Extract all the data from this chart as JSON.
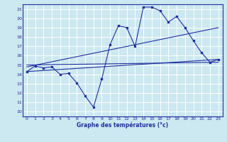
{
  "xlabel": "Graphe des températures (°c)",
  "bg_color": "#cce8f0",
  "line_color": "#2030a0",
  "grid_color": "#ffffff",
  "xlim": [
    -0.5,
    23.5
  ],
  "ylim": [
    9.5,
    21.5
  ],
  "yticks": [
    10,
    11,
    12,
    13,
    14,
    15,
    16,
    17,
    18,
    19,
    20,
    21
  ],
  "xticks": [
    0,
    1,
    2,
    3,
    4,
    5,
    6,
    7,
    8,
    9,
    10,
    11,
    12,
    13,
    14,
    15,
    16,
    17,
    18,
    19,
    20,
    21,
    22,
    23
  ],
  "series1_x": [
    0,
    1,
    2,
    3,
    4,
    5,
    6,
    7,
    8,
    9,
    10,
    11,
    12,
    13,
    14,
    15,
    16,
    17,
    18,
    19,
    20,
    21,
    22,
    23
  ],
  "series1_y": [
    14.3,
    14.9,
    14.7,
    14.8,
    14.0,
    14.1,
    13.1,
    11.7,
    10.5,
    13.5,
    17.2,
    19.2,
    19.0,
    17.0,
    21.2,
    21.2,
    20.8,
    19.6,
    20.2,
    19.0,
    17.6,
    16.3,
    15.3,
    15.6
  ],
  "series2_x": [
    0,
    23
  ],
  "series2_y": [
    14.3,
    15.6
  ],
  "series3_x": [
    0,
    23
  ],
  "series3_y": [
    14.8,
    19.0
  ],
  "series4_x": [
    0,
    23
  ],
  "series4_y": [
    15.0,
    15.3
  ]
}
